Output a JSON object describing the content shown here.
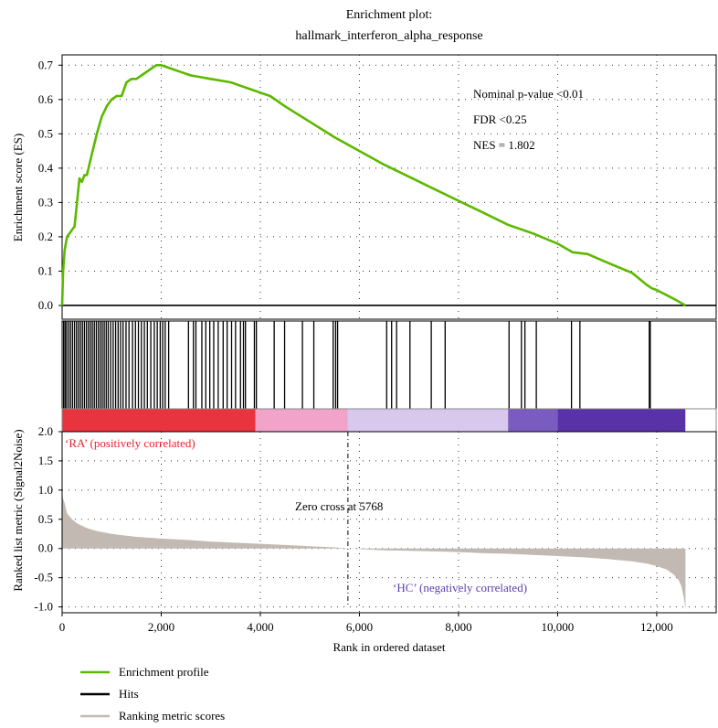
{
  "chart_data": {
    "type": "line",
    "title_line1": "Enrichment plot:",
    "title_line2": "hallmark_interferon_alpha_response",
    "xlabel": "Rank in ordered dataset",
    "xlim": [
      0,
      13200
    ],
    "xticks": [
      0,
      2000,
      4000,
      6000,
      8000,
      10000,
      12000
    ],
    "xtick_labels": [
      "0",
      "2,000",
      "4,000",
      "6,000",
      "8,000",
      "10,000",
      "12,000"
    ],
    "es_panel": {
      "ylabel": "Enrichment score (ES)",
      "ylim": [
        -0.04,
        0.73
      ],
      "yticks": [
        0.0,
        0.1,
        0.2,
        0.3,
        0.4,
        0.5,
        0.6,
        0.7
      ],
      "ytick_labels": [
        "0.0",
        "0.1",
        "0.2",
        "0.3",
        "0.4",
        "0.5",
        "0.6",
        "0.7"
      ],
      "series_name": "Enrichment profile",
      "color": "#5cb800",
      "x": [
        0,
        20,
        50,
        100,
        150,
        200,
        250,
        300,
        350,
        400,
        450,
        500,
        600,
        700,
        800,
        900,
        1000,
        1100,
        1200,
        1300,
        1400,
        1500,
        1600,
        1700,
        1800,
        1900,
        2000,
        2100,
        2200,
        2400,
        2600,
        2800,
        3000,
        3200,
        3400,
        3600,
        3800,
        4000,
        4200,
        4500,
        5000,
        5500,
        6000,
        6500,
        7000,
        7500,
        8000,
        8500,
        9000,
        9500,
        10000,
        10300,
        10600,
        11000,
        11500,
        11800,
        11900,
        12000,
        12200,
        12400,
        12580
      ],
      "y": [
        0.0,
        0.1,
        0.16,
        0.2,
        0.21,
        0.22,
        0.23,
        0.3,
        0.37,
        0.36,
        0.38,
        0.38,
        0.44,
        0.5,
        0.55,
        0.58,
        0.6,
        0.61,
        0.61,
        0.65,
        0.66,
        0.66,
        0.67,
        0.68,
        0.69,
        0.7,
        0.7,
        0.695,
        0.69,
        0.68,
        0.67,
        0.665,
        0.66,
        0.655,
        0.65,
        0.64,
        0.63,
        0.62,
        0.61,
        0.58,
        0.535,
        0.49,
        0.45,
        0.41,
        0.375,
        0.34,
        0.305,
        0.27,
        0.235,
        0.21,
        0.18,
        0.155,
        0.15,
        0.125,
        0.095,
        0.06,
        0.05,
        0.045,
        0.03,
        0.015,
        0.0
      ]
    },
    "annotations": {
      "pvalue": "Nominal p-value <0.01",
      "fdr": "FDR <0.25",
      "nes": "NES = 1.802",
      "zero_cross": "Zero cross at 5768",
      "pos_label": "‘RA’ (positively correlated)",
      "neg_label": "‘HC’ (negatively correlated)"
    },
    "zero_cross_x": 5768,
    "hits": {
      "series_name": "Hits",
      "color": "#000000",
      "positions": [
        30,
        60,
        90,
        130,
        170,
        210,
        250,
        290,
        330,
        370,
        410,
        450,
        490,
        530,
        570,
        610,
        650,
        690,
        730,
        770,
        810,
        850,
        890,
        930,
        980,
        1030,
        1080,
        1130,
        1180,
        1230,
        1290,
        1350,
        1420,
        1480,
        1540,
        1600,
        1660,
        1720,
        1790,
        1860,
        1920,
        1980,
        2030,
        2080,
        2150,
        2550,
        2650,
        2700,
        2820,
        2900,
        2980,
        3060,
        3150,
        3250,
        3330,
        3420,
        3500,
        3600,
        3660,
        3700,
        3880,
        3920,
        4280,
        4490,
        4850,
        5080,
        5470,
        5520,
        5560,
        6550,
        6650,
        6750,
        7020,
        7450,
        7730,
        9020,
        9270,
        9340,
        9570,
        10280,
        10450,
        11850,
        11870
      ]
    },
    "ranking_panel": {
      "ylabel": "Ranked list metric (Signal2Noise)",
      "ylim": [
        -1.1,
        2.0
      ],
      "yticks": [
        -1.0,
        -0.5,
        0.0,
        0.5,
        1.0,
        1.5,
        2.0
      ],
      "ytick_labels": [
        "-1.0",
        "-0.5",
        "0.0",
        "0.5",
        "1.0",
        "1.5",
        "2.0"
      ],
      "series_name": "Ranking metric scores",
      "color": "#c2bab2",
      "x": [
        0,
        20,
        50,
        100,
        200,
        300,
        500,
        700,
        1000,
        1500,
        2000,
        2500,
        3000,
        3500,
        4000,
        4500,
        5000,
        5500,
        5768,
        6000,
        6500,
        7000,
        7500,
        8000,
        8500,
        9000,
        9500,
        10000,
        10500,
        11000,
        11500,
        11800,
        12000,
        12200,
        12350,
        12450,
        12500,
        12550,
        12580
      ],
      "y": [
        0.92,
        0.85,
        0.78,
        0.6,
        0.5,
        0.43,
        0.35,
        0.3,
        0.25,
        0.2,
        0.17,
        0.15,
        0.12,
        0.1,
        0.08,
        0.06,
        0.04,
        0.02,
        0.0,
        -0.01,
        -0.03,
        -0.04,
        -0.05,
        -0.06,
        -0.08,
        -0.09,
        -0.11,
        -0.13,
        -0.15,
        -0.18,
        -0.22,
        -0.26,
        -0.3,
        -0.36,
        -0.45,
        -0.55,
        -0.65,
        -0.85,
        -1.05
      ]
    },
    "color_bar": {
      "segments": [
        {
          "from": 0,
          "to": 3900,
          "color": "#e8343e"
        },
        {
          "from": 3900,
          "to": 5768,
          "color": "#f1a3c9"
        },
        {
          "from": 5768,
          "to": 9000,
          "color": "#d8c8ee"
        },
        {
          "from": 9000,
          "to": 10000,
          "color": "#7a5cc0"
        },
        {
          "from": 10000,
          "to": 12580,
          "color": "#5a32a8"
        },
        {
          "from": 12580,
          "to": 13200,
          "color": "#ffffff"
        }
      ]
    },
    "legend": [
      {
        "label": "Enrichment profile",
        "color": "#5cb800"
      },
      {
        "label": "Hits",
        "color": "#000000"
      },
      {
        "label": "Ranking metric scores",
        "color": "#c2bab2"
      }
    ],
    "grid": true,
    "legend_position": "bottom-left"
  }
}
